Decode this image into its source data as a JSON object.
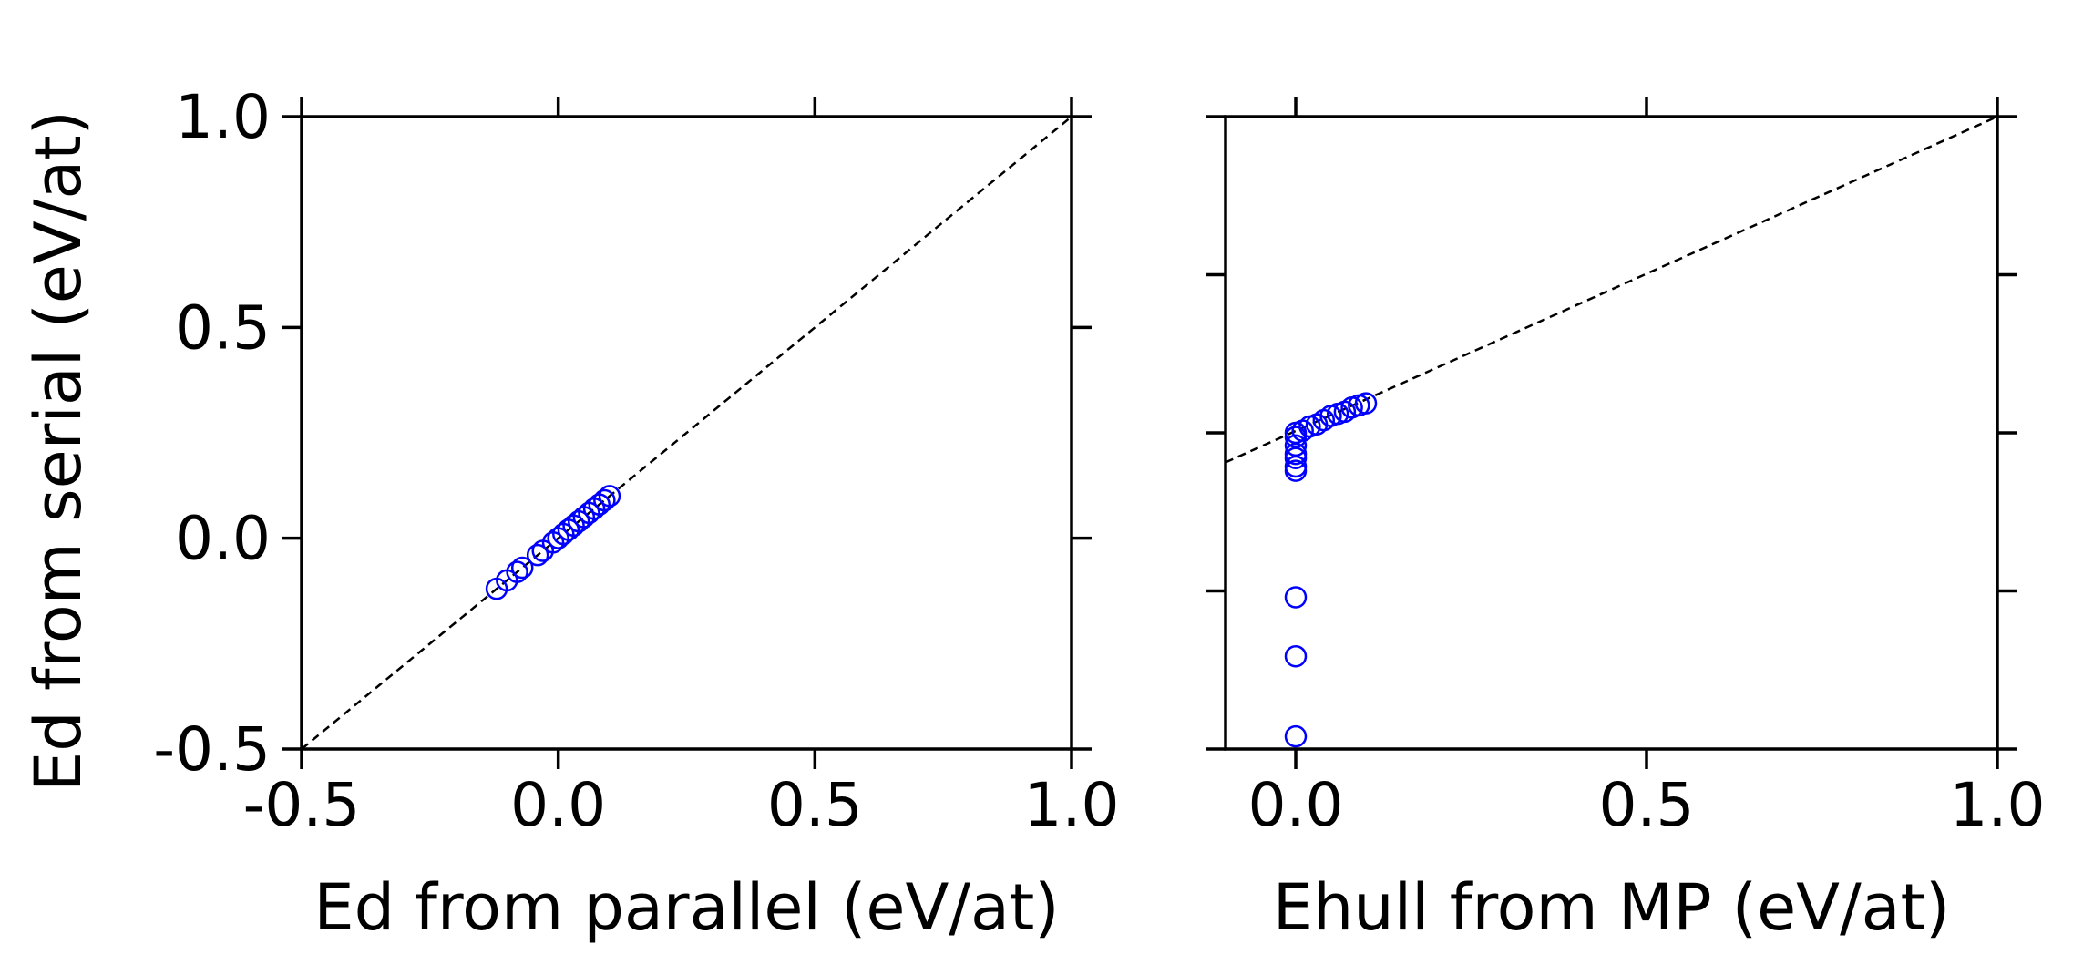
{
  "colors": {
    "marker": "#0000ff",
    "axes": "#000000",
    "refline": "#000000",
    "background": "#ffffff"
  },
  "chart_data": [
    {
      "type": "scatter",
      "xlabel": "Ed from parallel (eV/at)",
      "ylabel": "Ed from serial (eV/at)",
      "xlim": [
        -0.5,
        1.0
      ],
      "ylim": [
        -0.5,
        1.0
      ],
      "xticks": [
        "-0.5",
        "0.0",
        "0.5",
        "1.0"
      ],
      "yticks": [
        "-0.5",
        "0.0",
        "0.5",
        "1.0"
      ],
      "grid": false,
      "reference_line": {
        "style": "dashed",
        "from": [
          -0.5,
          -0.5
        ],
        "to": [
          1.0,
          1.0
        ]
      },
      "points": [
        [
          -0.12,
          -0.12
        ],
        [
          -0.1,
          -0.1
        ],
        [
          -0.08,
          -0.08
        ],
        [
          -0.07,
          -0.07
        ],
        [
          -0.04,
          -0.04
        ],
        [
          -0.03,
          -0.03
        ],
        [
          -0.01,
          -0.01
        ],
        [
          0.0,
          0.0
        ],
        [
          0.01,
          0.01
        ],
        [
          0.02,
          0.02
        ],
        [
          0.03,
          0.03
        ],
        [
          0.04,
          0.04
        ],
        [
          0.05,
          0.05
        ],
        [
          0.06,
          0.06
        ],
        [
          0.07,
          0.07
        ],
        [
          0.08,
          0.08
        ],
        [
          0.09,
          0.09
        ],
        [
          0.1,
          0.1
        ]
      ]
    },
    {
      "type": "scatter",
      "xlabel": "Ehull from MP (eV/at)",
      "ylabel": "",
      "xlim": [
        -0.1,
        1.0
      ],
      "ylim": [
        -0.5,
        1.0
      ],
      "xticks": [
        "0.0",
        "0.5",
        "1.0"
      ],
      "yticks": [],
      "grid": false,
      "reference_line": {
        "style": "dashed",
        "from": [
          -0.1,
          0.18
        ],
        "to": [
          1.0,
          1.0
        ]
      },
      "points": [
        [
          0.0,
          -0.47
        ],
        [
          0.0,
          -0.28
        ],
        [
          0.0,
          -0.14
        ],
        [
          0.0,
          0.16
        ],
        [
          0.0,
          0.17
        ],
        [
          0.0,
          0.19
        ],
        [
          0.0,
          0.2
        ],
        [
          0.0,
          0.22
        ],
        [
          0.0,
          0.24
        ],
        [
          0.0,
          0.25
        ],
        [
          0.01,
          0.255
        ],
        [
          0.02,
          0.265
        ],
        [
          0.03,
          0.27
        ],
        [
          0.04,
          0.28
        ],
        [
          0.05,
          0.29
        ],
        [
          0.06,
          0.295
        ],
        [
          0.07,
          0.3
        ],
        [
          0.08,
          0.31
        ],
        [
          0.09,
          0.315
        ],
        [
          0.1,
          0.32
        ]
      ]
    }
  ]
}
